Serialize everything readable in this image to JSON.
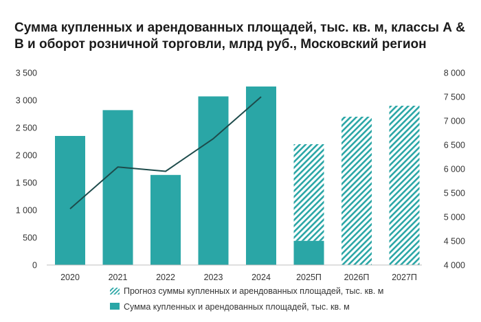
{
  "title": "Сумма купленных и арендованных площадей, тыс. кв. м, классы А & В и оборот розничной торговли, млрд руб., Московский регион",
  "colors": {
    "bar": "#2aa6a6",
    "hatch": "#2aa6a6",
    "line": "#1d4b4b",
    "text": "#333333"
  },
  "chart_data": {
    "type": "bar",
    "categories": [
      "2020",
      "2021",
      "2022",
      "2023",
      "2024",
      "2025П",
      "2026П",
      "2027П"
    ],
    "series": [
      {
        "name": "Сумма купленных и арендованных площадей, тыс. кв. м",
        "axis": "left",
        "style": "solid",
        "values": [
          2350,
          2820,
          1640,
          3070,
          3250,
          440,
          null,
          null
        ]
      },
      {
        "name": "Прогноз суммы купленных и арендованных площадей, тыс. кв. м",
        "axis": "left",
        "style": "hatched",
        "stacked_on_previous": true,
        "values": [
          null,
          null,
          null,
          null,
          null,
          1760,
          2700,
          2900
        ]
      },
      {
        "name": "",
        "axis": "right",
        "type": "line",
        "values": [
          5170,
          6040,
          5950,
          6630,
          7500,
          null,
          null,
          null
        ]
      }
    ],
    "left_axis": {
      "ylim": [
        0,
        3500
      ],
      "ticks": [
        0,
        500,
        1000,
        1500,
        2000,
        2500,
        3000,
        3500
      ],
      "tick_labels": [
        "0",
        "500",
        "1 000",
        "1 500",
        "2 000",
        "2 500",
        "3 000",
        "3 500"
      ]
    },
    "right_axis": {
      "ylim": [
        4000,
        8000
      ],
      "ticks": [
        4000,
        4500,
        5000,
        5500,
        6000,
        6500,
        7000,
        7500,
        8000
      ],
      "tick_labels": [
        "4 000",
        "4 500",
        "5 000",
        "5 500",
        "6 000",
        "6 500",
        "7 000",
        "7 500",
        "8 000"
      ]
    },
    "legend": [
      {
        "label": "Прогноз суммы купленных и арендованных площадей, тыс. кв. м",
        "style": "hatched"
      },
      {
        "label": "Сумма купленных и арендованных площадей, тыс. кв. м",
        "style": "solid"
      }
    ],
    "legend_position": "bottom",
    "grid": false
  }
}
